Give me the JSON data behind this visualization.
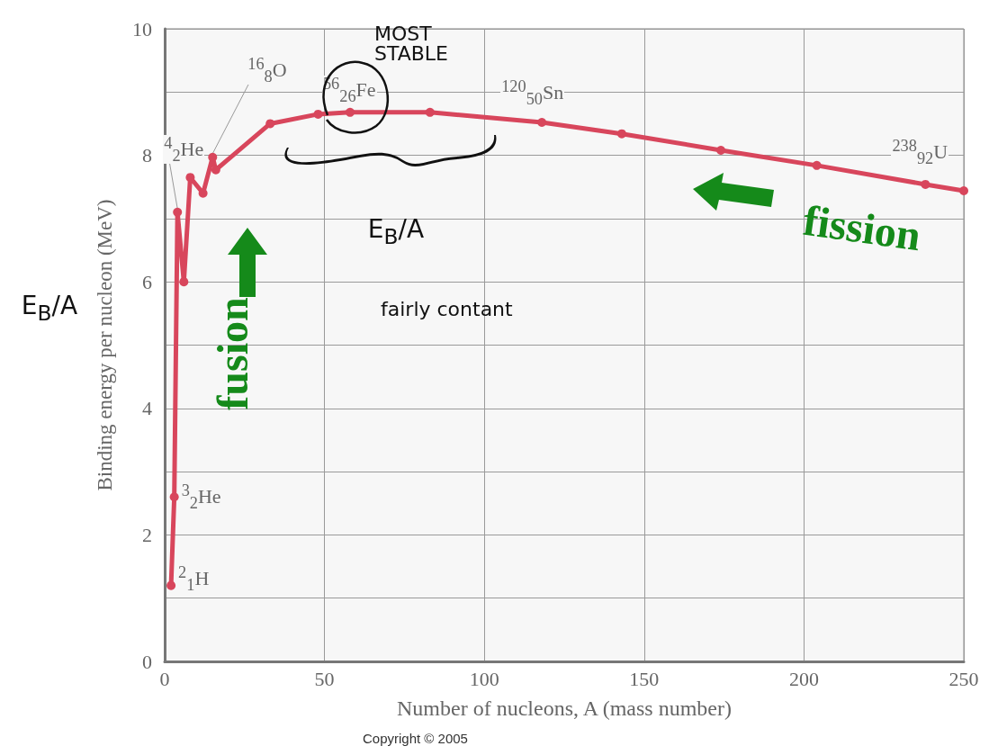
{
  "chart_data": {
    "type": "line",
    "xlabel": "Number of nucleons, A (mass number)",
    "ylabel": "Binding energy per nucleon (MeV)",
    "x": [
      2,
      3,
      4,
      6,
      8,
      12,
      15,
      16,
      33,
      48,
      58,
      83,
      118,
      143,
      174,
      204,
      238,
      250
    ],
    "series": [
      {
        "color": "#d8465c",
        "values": [
          1.2,
          2.6,
          7.1,
          6.0,
          7.65,
          7.4,
          7.97,
          7.77,
          8.5,
          8.65,
          8.68,
          8.68,
          8.52,
          8.34,
          8.08,
          7.84,
          7.54,
          7.44
        ]
      }
    ],
    "xlim": [
      0,
      250
    ],
    "xticks": [
      0,
      50,
      100,
      150,
      200,
      250
    ],
    "ylim": [
      0,
      10
    ],
    "yticks": [
      0,
      {
        "value": 1,
        "label": null
      },
      2,
      {
        "value": 3,
        "label": null
      },
      4,
      {
        "value": 5,
        "label": null
      },
      6,
      {
        "value": 7,
        "label": null
      },
      8,
      {
        "value": 9,
        "label": null
      },
      10
    ],
    "grid": true,
    "marker": "circle",
    "line_style": "solid",
    "annotations": [
      {
        "text": "$^{2}$$_{1}$H",
        "x": 2,
        "y": 1.2
      },
      {
        "text": "$^{3}$$_{2}$He",
        "x": 3,
        "y": 2.6
      },
      {
        "text": "$^{4}$$_{2}$He",
        "x": 4,
        "y": 7.1
      },
      {
        "text": "$^{16}$$_{8}$O",
        "x": 15,
        "y": 7.97
      },
      {
        "text": "$^{56}$$_{26}$Fe",
        "x": 56,
        "y": 8.7
      },
      {
        "text": "$^{120}$$_{50}$Sn",
        "x": 118,
        "y": 8.52
      },
      {
        "text": "$^{238}$$_{92}$U",
        "x": 238,
        "y": 7.54
      },
      "fusion",
      "fission",
      "MOST STABLE",
      "E$_{B}$/A",
      "fairly contant",
      "E$_{B}$/A",
      "Copyright © 2005"
    ]
  }
}
